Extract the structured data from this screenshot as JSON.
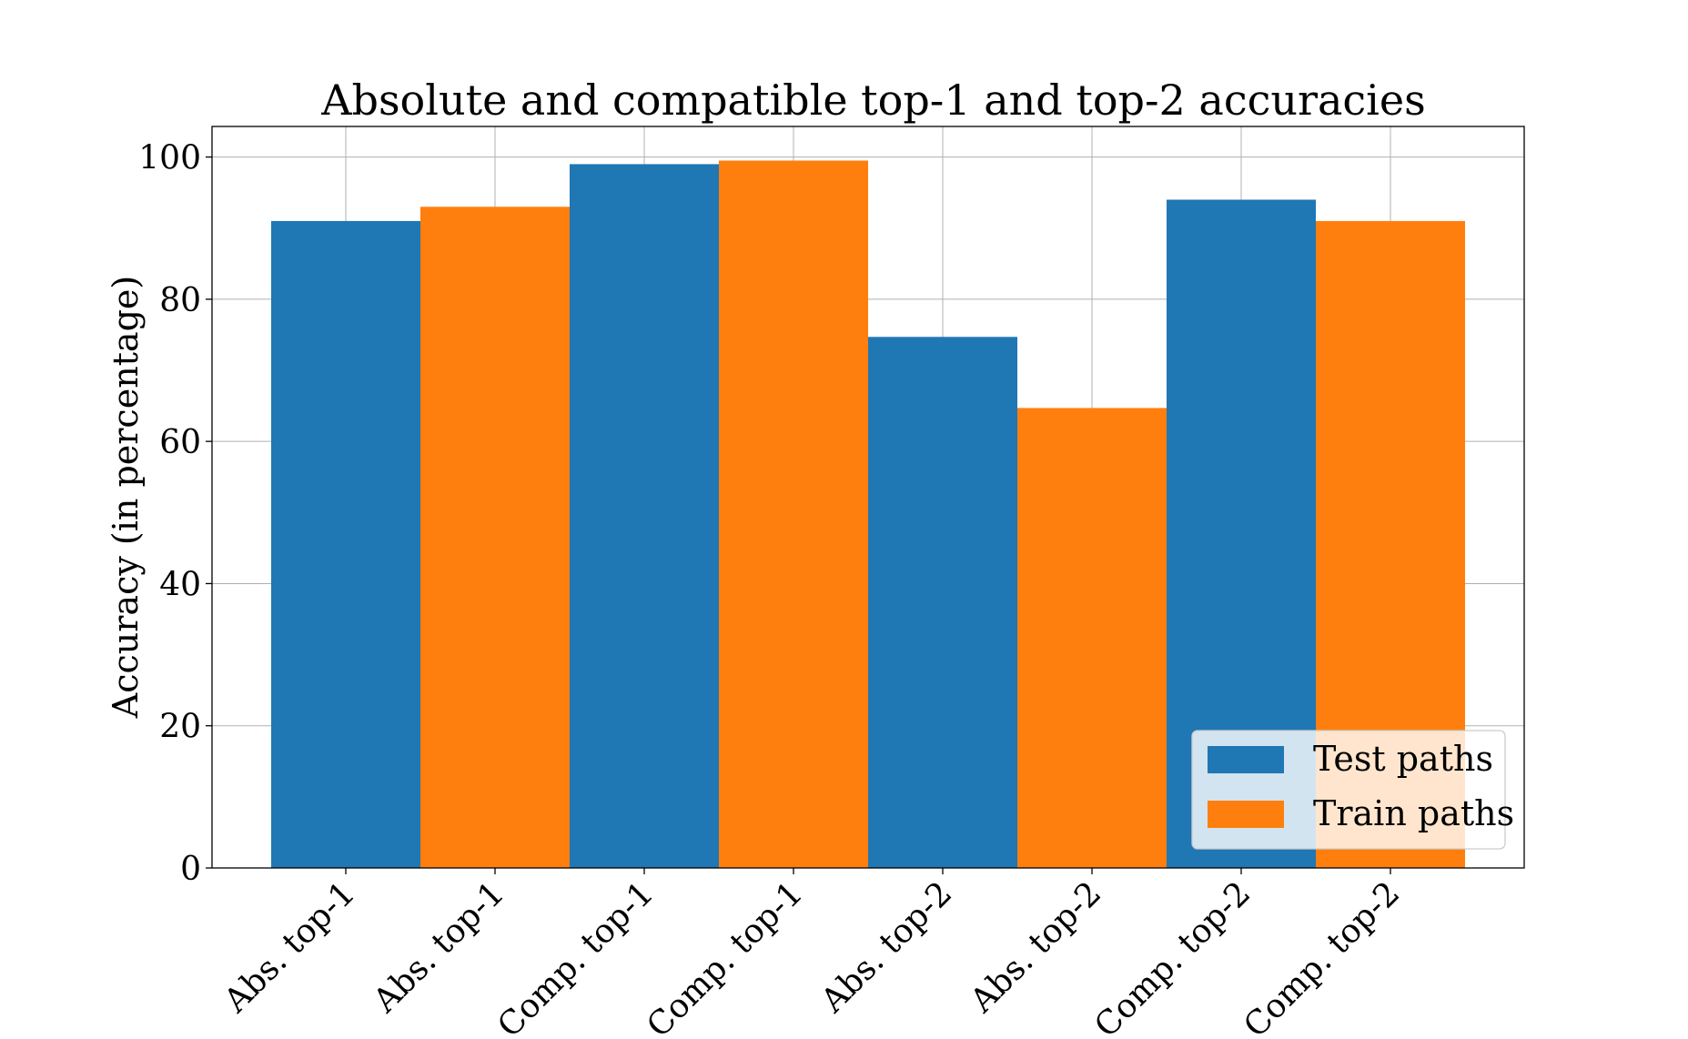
{
  "chart_data": {
    "type": "bar",
    "title": "Absolute and compatible top-1 and top-2 accuracies",
    "xlabel": "",
    "ylabel": "Accuracy (in percentage)",
    "ylim": [
      0,
      104.3
    ],
    "yticks": [
      0,
      20,
      40,
      60,
      80,
      100
    ],
    "ytick_labels": [
      "0",
      "20",
      "40",
      "60",
      "80",
      "100"
    ],
    "grid": true,
    "legend_placement": "lower-right",
    "categories": [
      "Abs. top-1",
      "Abs. top-1",
      "Comp. top-1",
      "Comp. top-1",
      "Abs. top-2",
      "Abs. top-2",
      "Comp. top-2",
      "Comp. top-2"
    ],
    "bars": [
      {
        "category": "Abs. top-1",
        "series": "Test paths",
        "value": 91.0
      },
      {
        "category": "Abs. top-1",
        "series": "Train paths",
        "value": 93.0
      },
      {
        "category": "Comp. top-1",
        "series": "Test paths",
        "value": 99.0
      },
      {
        "category": "Comp. top-1",
        "series": "Train paths",
        "value": 99.5
      },
      {
        "category": "Abs. top-2",
        "series": "Test paths",
        "value": 74.7
      },
      {
        "category": "Abs. top-2",
        "series": "Train paths",
        "value": 64.7
      },
      {
        "category": "Comp. top-2",
        "series": "Test paths",
        "value": 94.0
      },
      {
        "category": "Comp. top-2",
        "series": "Train paths",
        "value": 91.0
      }
    ],
    "series": [
      {
        "name": "Test paths",
        "color": "#1f77b4"
      },
      {
        "name": "Train paths",
        "color": "#ff7f0e"
      }
    ]
  }
}
